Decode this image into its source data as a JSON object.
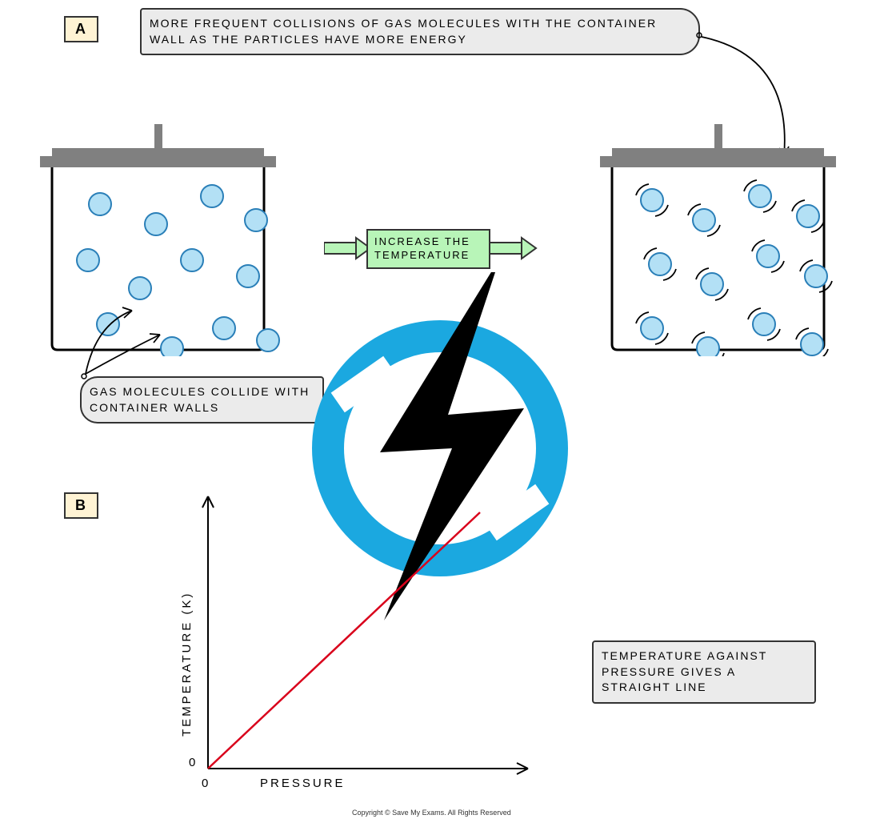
{
  "labels": {
    "a": "A",
    "b": "B"
  },
  "boxes": {
    "top": "MORE FREQUENT COLLISIONS OF GAS MOLECULES WITH THE CONTAINER WALL AS THE PARTICLES HAVE MORE ENERGY",
    "action": "INCREASE THE\nTEMPERATURE",
    "collide": "GAS MOLECULES COLLIDE WITH CONTAINER WALLS",
    "graph": "TEMPERATURE AGAINST PRESSURE GIVES A STRAIGHT LINE"
  },
  "chart": {
    "type": "line",
    "y_label": "TEMPERATURE (K)",
    "x_label": "PRESSURE",
    "origin_label": "0",
    "line_color": "#d9001b",
    "axis_color": "#000000",
    "line_start": [
      0,
      0
    ],
    "line_end": [
      1,
      1
    ],
    "axis_stroke_width": 2,
    "line_stroke_width": 2.5
  },
  "containers": {
    "wall_color": "#000000",
    "lid_color": "#808080",
    "molecule_fill": "#b3e0f5",
    "molecule_stroke": "#2a7fb8",
    "molecule_radius": 14,
    "left_molecules": [
      [
        60,
        60
      ],
      [
        130,
        85
      ],
      [
        200,
        50
      ],
      [
        255,
        80
      ],
      [
        45,
        130
      ],
      [
        110,
        165
      ],
      [
        175,
        130
      ],
      [
        245,
        150
      ],
      [
        70,
        210
      ],
      [
        150,
        240
      ],
      [
        215,
        215
      ],
      [
        270,
        230
      ]
    ],
    "right_molecules": [
      [
        50,
        55
      ],
      [
        115,
        80
      ],
      [
        185,
        50
      ],
      [
        245,
        75
      ],
      [
        60,
        135
      ],
      [
        125,
        160
      ],
      [
        195,
        125
      ],
      [
        255,
        150
      ],
      [
        50,
        215
      ],
      [
        120,
        240
      ],
      [
        190,
        210
      ],
      [
        250,
        235
      ]
    ]
  },
  "watermark": {
    "ring_color": "#1ba8e0",
    "bolt_color": "#000000"
  },
  "colors": {
    "label_bg": "#fff3d4",
    "box_bg": "#ebebeb",
    "action_bg": "#b8f5b8",
    "border": "#333333",
    "background": "#ffffff"
  },
  "copyright": "Copyright © Save My Exams. All Rights Reserved"
}
